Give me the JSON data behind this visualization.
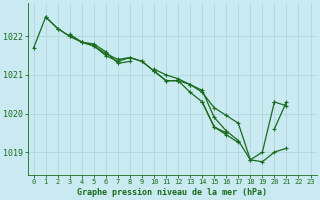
{
  "title": "Graphe pression niveau de la mer (hPa)",
  "bg_color": "#c8eaf0",
  "grid_color": "#b0d8e0",
  "line_color": "#1a6b1a",
  "xlim": [
    -0.5,
    23.5
  ],
  "ylim": [
    1018.4,
    1022.85
  ],
  "yticks": [
    1019,
    1020,
    1021,
    1022
  ],
  "xticks": [
    0,
    1,
    2,
    3,
    4,
    5,
    6,
    7,
    8,
    9,
    10,
    11,
    12,
    13,
    14,
    15,
    16,
    17,
    18,
    19,
    20,
    21,
    22,
    23
  ],
  "series": [
    [
      1021.7,
      1022.5,
      1022.2,
      1022.0,
      1021.85,
      1021.75,
      1021.5,
      1021.35,
      1021.45,
      1021.35,
      1021.1,
      1020.85,
      1020.85,
      1020.75,
      1020.55,
      1020.15,
      1019.95,
      1019.75,
      1018.8,
      1018.75,
      1019.0,
      1019.1,
      null,
      null
    ],
    [
      null,
      1022.5,
      1022.2,
      1022.0,
      1021.85,
      1021.75,
      1021.55,
      1021.4,
      1021.45,
      1021.35,
      1021.1,
      1020.85,
      1020.85,
      1020.55,
      1020.3,
      1019.65,
      1019.45,
      1019.25,
      null,
      null,
      1019.6,
      1020.3,
      null,
      null
    ],
    [
      null,
      null,
      null,
      1022.05,
      1021.85,
      1021.8,
      1021.6,
      1021.3,
      1021.35,
      null,
      1021.15,
      1021.0,
      1020.9,
      1020.75,
      1020.6,
      1019.9,
      1019.55,
      1019.3,
      1018.8,
      1019.0,
      1020.3,
      null,
      null,
      null
    ],
    [
      null,
      null,
      null,
      null,
      null,
      null,
      null,
      null,
      null,
      null,
      null,
      null,
      null,
      null,
      1020.3,
      1019.65,
      1019.5,
      null,
      null,
      null,
      1020.3,
      1020.2,
      null,
      null
    ]
  ],
  "ylabel_fontsize": 6,
  "xlabel_fontsize": 6,
  "tick_fontsize": 5,
  "linewidth": 0.9,
  "markersize": 3.0
}
